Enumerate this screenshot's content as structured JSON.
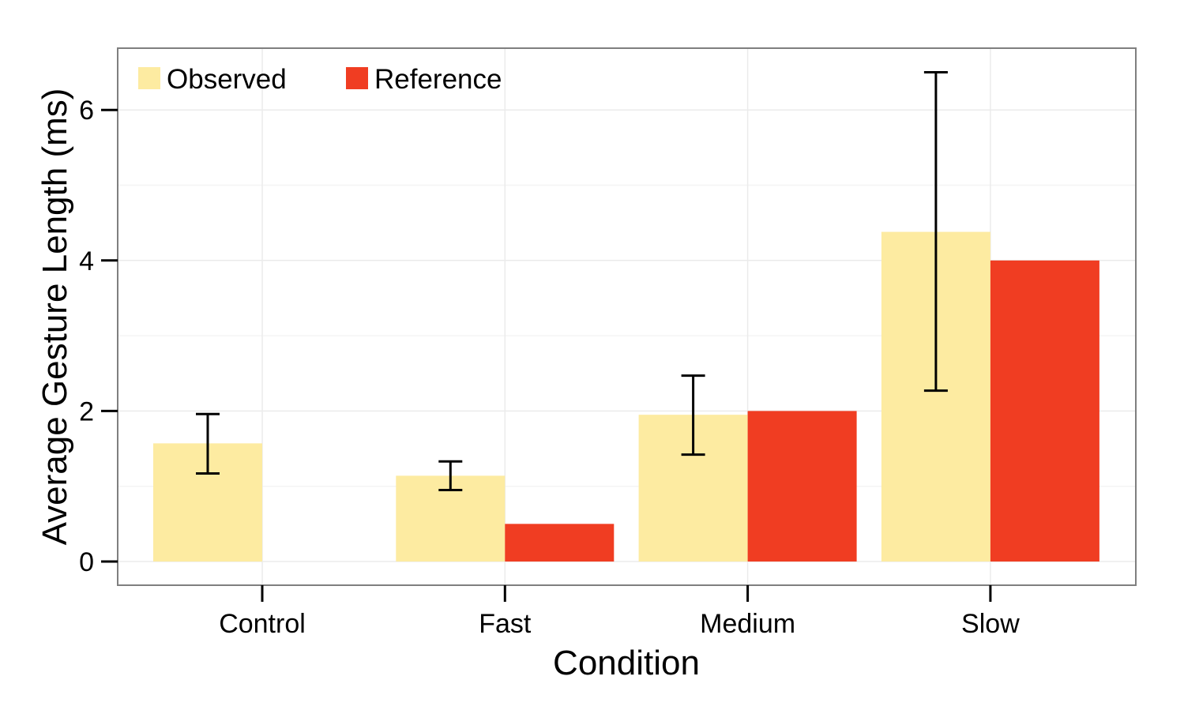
{
  "chart_data": {
    "type": "bar",
    "categories": [
      "Control",
      "Fast",
      "Medium",
      "Slow"
    ],
    "series": [
      {
        "name": "Observed",
        "color": "#FDEBA1",
        "values": [
          1.57,
          1.14,
          1.95,
          4.38
        ],
        "error_low": [
          1.17,
          0.95,
          1.42,
          2.27
        ],
        "error_high": [
          1.96,
          1.33,
          2.47,
          6.5
        ]
      },
      {
        "name": "Reference",
        "color": "#F03D22",
        "values": [
          null,
          0.5,
          2.0,
          4.0
        ]
      }
    ],
    "xlabel": "Condition",
    "ylabel": "Average Gesture Length (ms)",
    "ylim": [
      -0.31,
      6.83
    ],
    "yticks": [
      0,
      2,
      4,
      6
    ],
    "yminor": [
      1,
      3,
      5
    ],
    "grid": true,
    "legend_position": "top-left"
  }
}
